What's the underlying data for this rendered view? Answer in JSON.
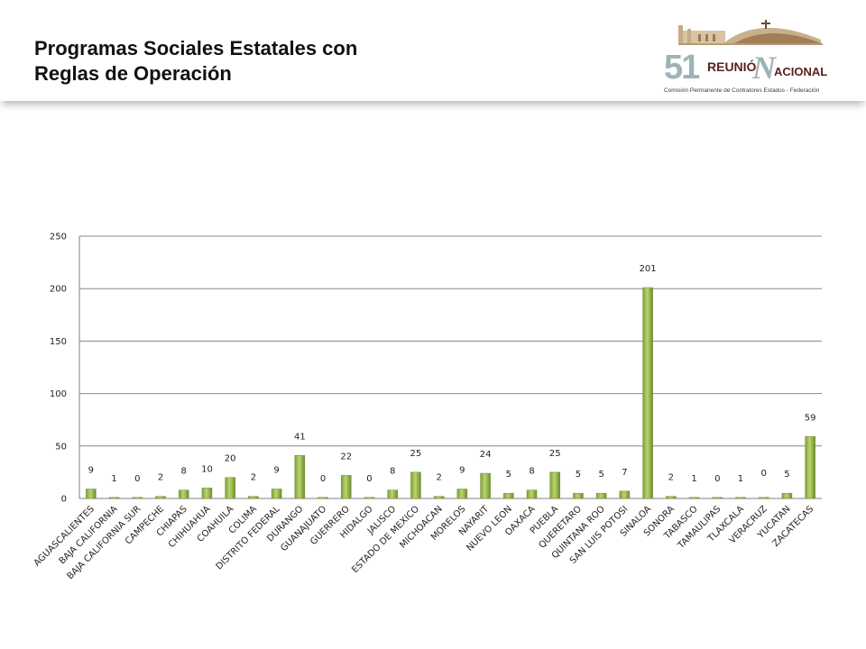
{
  "header": {
    "title_line1": "Programas Sociales Estatales con",
    "title_line2": "Reglas de Operación"
  },
  "logo": {
    "number": "51",
    "word1": "REUNIÓ",
    "letter": "N",
    "word2": "ACIONAL",
    "subtitle": "Comisión Permanente de Contralores Estados - Federación",
    "colors": {
      "brown": "#5b1f1a",
      "teal": "#9fb3b6"
    }
  },
  "chart_data": {
    "type": "bar",
    "categories": [
      "AGUASCALIENTES",
      "BAJA CALIFORNIA",
      "BAJA CALIFORNIA SUR",
      "CAMPECHE",
      "CHIAPAS",
      "CHIHUAHUA",
      "COAHUILA",
      "COLIMA",
      "DISTRITO FEDERAL",
      "DURANGO",
      "GUANAJUATO",
      "GUERRERO",
      "HIDALGO",
      "JALISCO",
      "ESTADO DE MEXICO",
      "MICHOACAN",
      "MORELOS",
      "NAYARIT",
      "NUEVO LEON",
      "OAXACA",
      "PUEBLA",
      "QUERETARO",
      "QUINTANA ROO",
      "SAN LUIS POTOSI",
      "SINALOA",
      "SONORA",
      "TABASCO",
      "TAMAULIPAS",
      "TLAXCALA",
      "VERACRUZ",
      "YUCATAN",
      "ZACATECAS"
    ],
    "values": [
      9,
      1,
      0,
      2,
      8,
      10,
      20,
      2,
      9,
      41,
      0,
      22,
      0,
      8,
      25,
      2,
      9,
      24,
      5,
      8,
      25,
      5,
      5,
      7,
      201,
      2,
      1,
      0,
      1,
      0,
      5,
      59
    ],
    "title": "",
    "xlabel": "",
    "ylabel": "",
    "ylim": [
      0,
      250
    ],
    "yticks": [
      0,
      50,
      100,
      150,
      200,
      250
    ],
    "grid": true,
    "bar_color": "#9bbb59",
    "bar_color_dark": "#6e8c30"
  }
}
